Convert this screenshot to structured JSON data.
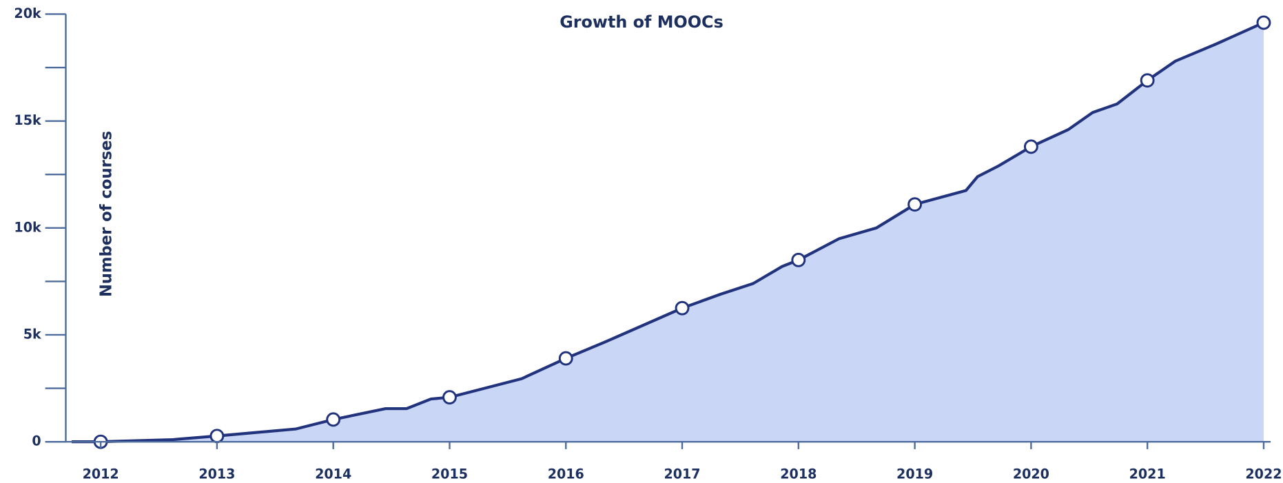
{
  "chart_data": {
    "type": "area",
    "title": "Growth of MOOCs",
    "y_label": "Number of courses",
    "x": [
      2011.75,
      2012,
      2012.62,
      2013,
      2013.68,
      2014,
      2014.45,
      2014.63,
      2014.84,
      2015,
      2015.62,
      2016,
      2016.33,
      2017,
      2017.33,
      2017.61,
      2017.86,
      2018,
      2018.35,
      2018.67,
      2019,
      2019.44,
      2019.54,
      2019.72,
      2020,
      2020.32,
      2020.53,
      2020.74,
      2021,
      2021.24,
      2021.59,
      2022
    ],
    "series": [
      {
        "color": "#22337e",
        "fill": "#c9d6f5",
        "values": [
          0,
          0,
          100,
          270,
          600,
          1040,
          1550,
          1550,
          2000,
          2080,
          2950,
          3900,
          4650,
          6250,
          6900,
          7400,
          8200,
          8500,
          9500,
          10000,
          11100,
          11750,
          12400,
          12900,
          13800,
          14600,
          15400,
          15800,
          16900,
          17800,
          18600,
          19600
        ]
      }
    ],
    "xlim": [
      2011.7,
      2022.06
    ],
    "xticks": [
      2012,
      2013,
      2014,
      2015,
      2016,
      2017,
      2018,
      2019,
      2020,
      2021,
      2022
    ],
    "ylim": [
      0,
      20000
    ],
    "yticks": [
      {
        "value": 0,
        "label": "0"
      },
      {
        "value": 5000,
        "label": "5k"
      },
      {
        "value": 10000,
        "label": "10k"
      },
      {
        "value": 15000,
        "label": "15k"
      },
      {
        "value": 20000,
        "label": "20k"
      }
    ],
    "minor_yticks": [
      2500,
      7500,
      12500,
      17500
    ]
  }
}
